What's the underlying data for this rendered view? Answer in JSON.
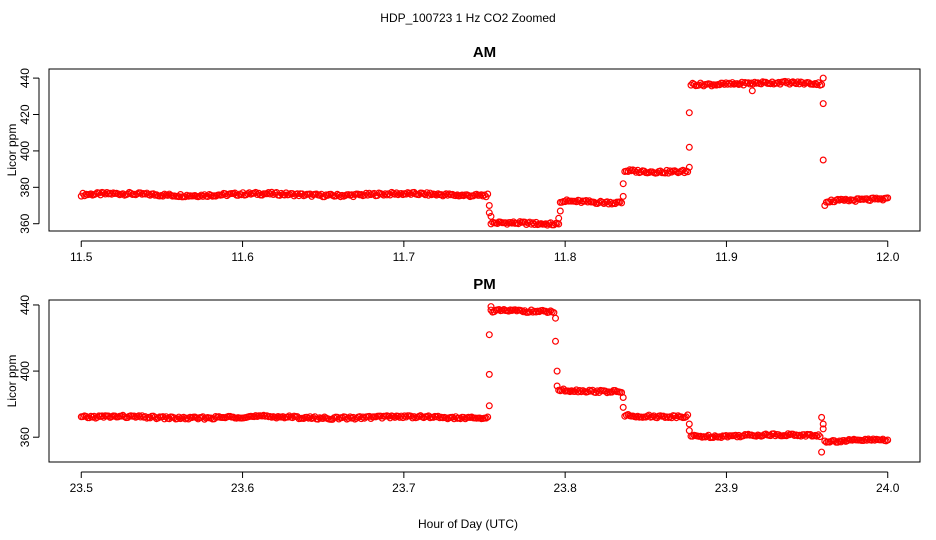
{
  "figure": {
    "title": "HDP_100723  1 Hz CO2 Zoomed",
    "xlabel": "Hour of Day (UTC)"
  },
  "chart_data": [
    {
      "type": "scatter",
      "title": "AM",
      "xlabel": "",
      "ylabel": "Licor ppm",
      "xlim": [
        11.48,
        12.02
      ],
      "ylim": [
        356,
        445
      ],
      "xticks": [
        11.5,
        11.6,
        11.7,
        11.8,
        11.9,
        12.0
      ],
      "xtick_labels": [
        "11.5",
        "11.6",
        "11.7",
        "11.8",
        "11.9",
        "12.0"
      ],
      "yticks": [
        360,
        380,
        400,
        420,
        440
      ],
      "ytick_labels": [
        "360",
        "380",
        "400",
        "420",
        "440"
      ],
      "marker": "open-circle",
      "color": "#ff0000",
      "segments": [
        {
          "x_start": 11.5,
          "x_end": 11.752,
          "y": 376
        },
        {
          "x_start": 11.754,
          "x_end": 11.796,
          "y": 360
        },
        {
          "x_start": 11.797,
          "x_end": 11.835,
          "y": 372
        },
        {
          "x_start": 11.837,
          "x_end": 11.876,
          "y": 389
        },
        {
          "x_start": 11.878,
          "x_end": 11.959,
          "y": 437
        },
        {
          "x_start": 11.962,
          "x_end": 12.0,
          "y": 373
        }
      ],
      "transition_points": [
        {
          "x": 11.753,
          "y": 370
        },
        {
          "x": 11.753,
          "y": 366
        },
        {
          "x": 11.754,
          "y": 364
        },
        {
          "x": 11.796,
          "y": 363
        },
        {
          "x": 11.797,
          "y": 367
        },
        {
          "x": 11.836,
          "y": 375
        },
        {
          "x": 11.836,
          "y": 382
        },
        {
          "x": 11.877,
          "y": 391
        },
        {
          "x": 11.877,
          "y": 402
        },
        {
          "x": 11.877,
          "y": 421
        },
        {
          "x": 11.916,
          "y": 433
        },
        {
          "x": 11.96,
          "y": 440
        },
        {
          "x": 11.96,
          "y": 426
        },
        {
          "x": 11.96,
          "y": 395
        },
        {
          "x": 11.961,
          "y": 370
        }
      ]
    },
    {
      "type": "scatter",
      "title": "PM",
      "xlabel": "",
      "ylabel": "Licor ppm",
      "xlim": [
        23.48,
        24.02
      ],
      "ylim": [
        345,
        443
      ],
      "xticks": [
        23.5,
        23.6,
        23.7,
        23.8,
        23.9,
        24.0
      ],
      "xtick_labels": [
        "23.5",
        "23.6",
        "23.7",
        "23.8",
        "23.9",
        "24.0"
      ],
      "yticks": [
        360,
        400,
        440
      ],
      "ytick_labels": [
        "360",
        "400",
        "440"
      ],
      "marker": "open-circle",
      "color": "#ff0000",
      "segments": [
        {
          "x_start": 23.5,
          "x_end": 23.752,
          "y": 372
        },
        {
          "x_start": 23.754,
          "x_end": 23.793,
          "y": 436
        },
        {
          "x_start": 23.796,
          "x_end": 23.835,
          "y": 388
        },
        {
          "x_start": 23.837,
          "x_end": 23.876,
          "y": 373
        },
        {
          "x_start": 23.878,
          "x_end": 23.958,
          "y": 361
        },
        {
          "x_start": 23.961,
          "x_end": 24.0,
          "y": 358
        }
      ],
      "transition_points": [
        {
          "x": 23.753,
          "y": 379
        },
        {
          "x": 23.753,
          "y": 398
        },
        {
          "x": 23.753,
          "y": 422
        },
        {
          "x": 23.754,
          "y": 439
        },
        {
          "x": 23.794,
          "y": 432
        },
        {
          "x": 23.794,
          "y": 418
        },
        {
          "x": 23.795,
          "y": 400
        },
        {
          "x": 23.795,
          "y": 391
        },
        {
          "x": 23.836,
          "y": 384
        },
        {
          "x": 23.836,
          "y": 378
        },
        {
          "x": 23.877,
          "y": 368
        },
        {
          "x": 23.877,
          "y": 364
        },
        {
          "x": 23.959,
          "y": 351
        },
        {
          "x": 23.959,
          "y": 372
        },
        {
          "x": 23.96,
          "y": 368
        },
        {
          "x": 23.96,
          "y": 365
        }
      ]
    }
  ]
}
